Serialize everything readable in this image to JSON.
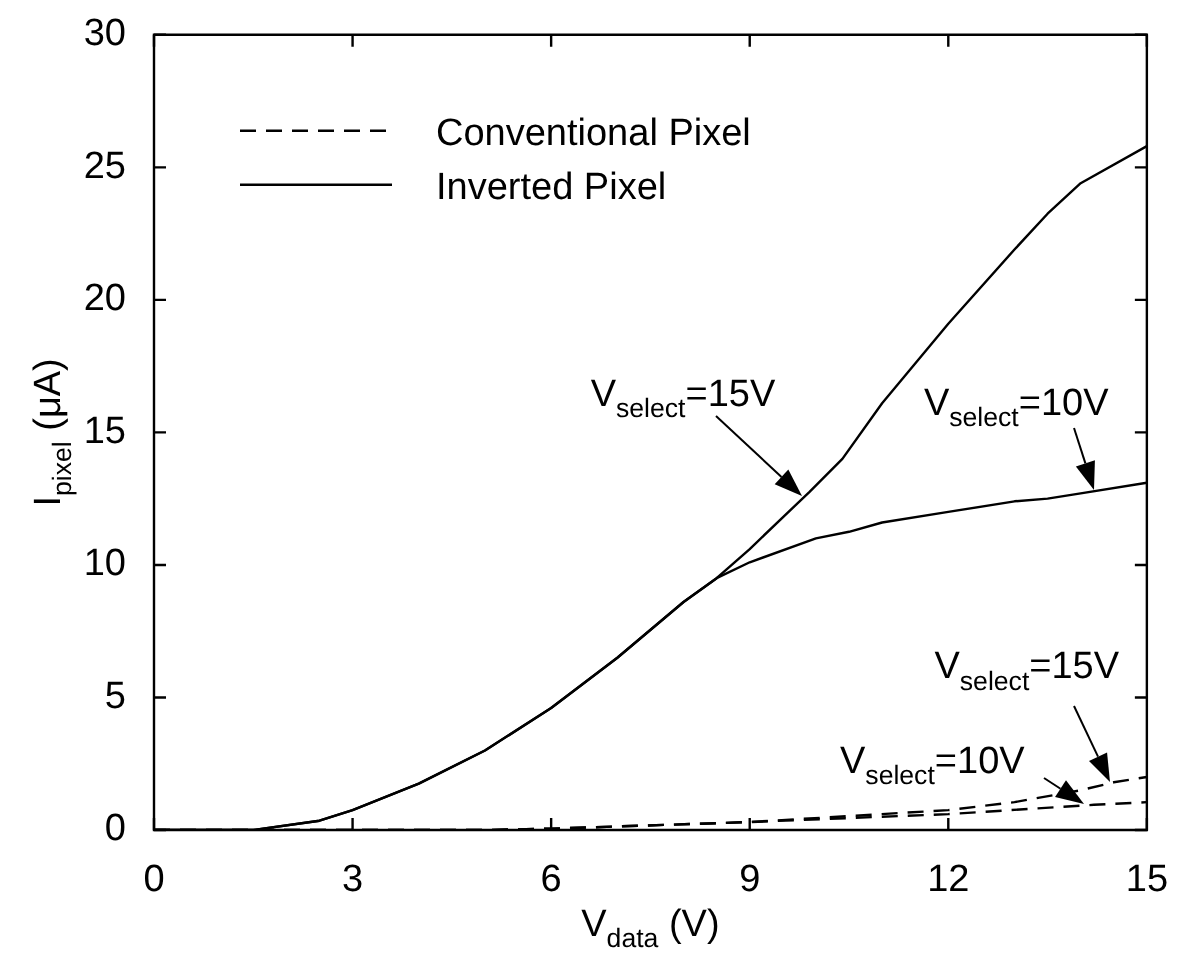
{
  "chart_data": {
    "type": "line",
    "xlabel": "V$_{data}$ (V)",
    "ylabel": "I$_{pixel}$ (μA)",
    "xlim": [
      0,
      15
    ],
    "xticks": [
      0,
      3,
      6,
      9,
      12,
      15
    ],
    "ylim": [
      0,
      30
    ],
    "yticks": [
      0,
      5,
      10,
      15,
      20,
      25,
      30
    ],
    "grid": false,
    "legend": "top left",
    "marker": "none",
    "series": [
      {
        "name": "Conventional Pixel",
        "color": "#000000",
        "line_style": "dashed",
        "x": [
          0,
          5,
          6,
          9,
          12,
          13,
          14,
          14.5,
          15
        ],
        "values": [
          0,
          0,
          0.05,
          0.3,
          0.75,
          1.05,
          1.5,
          1.8,
          2.0
        ]
      },
      {
        "color": "#000000",
        "line_style": "dashed",
        "x": [
          0,
          5,
          6,
          9,
          12,
          14.2,
          15
        ],
        "values": [
          0,
          0,
          0.05,
          0.3,
          0.6,
          0.95,
          1.05
        ]
      },
      {
        "name": "Inverted Pixel",
        "color": "#000000",
        "line_style": "solid",
        "x": [
          0,
          1.5,
          2.5,
          3,
          4,
          5,
          6,
          7,
          8,
          8.5,
          9,
          9.9,
          10.4,
          11,
          12,
          13,
          13.5,
          14,
          15
        ],
        "values": [
          0,
          0,
          0.35,
          0.75,
          1.75,
          3.0,
          4.6,
          6.5,
          8.6,
          9.5,
          10.6,
          12.75,
          14.0,
          16.1,
          19.1,
          21.9,
          23.25,
          24.4,
          25.8
        ]
      },
      {
        "color": "#000000",
        "line_style": "solid",
        "x": [
          0,
          1.5,
          2.5,
          3,
          4,
          5,
          6,
          7,
          8,
          8.5,
          9,
          10,
          10.5,
          11,
          12,
          13,
          13.5,
          14,
          15
        ],
        "values": [
          0,
          0,
          0.35,
          0.75,
          1.75,
          3.0,
          4.6,
          6.5,
          8.6,
          9.5,
          10.1,
          11.0,
          11.25,
          11.6,
          12.0,
          12.4,
          12.5,
          12.7,
          13.1
        ]
      }
    ],
    "annotations": [
      {
        "text": "V$_{select}$=15V",
        "x": 9.8,
        "y": 12.6
      },
      {
        "text": "V$_{select}$=10V",
        "x": 14.2,
        "y": 12.8
      },
      {
        "text": "V$_{select}$=15V",
        "x": 14.45,
        "y": 1.8
      },
      {
        "text": "V$_{select}$=10V",
        "x": 14.05,
        "y": 0.95
      }
    ]
  }
}
